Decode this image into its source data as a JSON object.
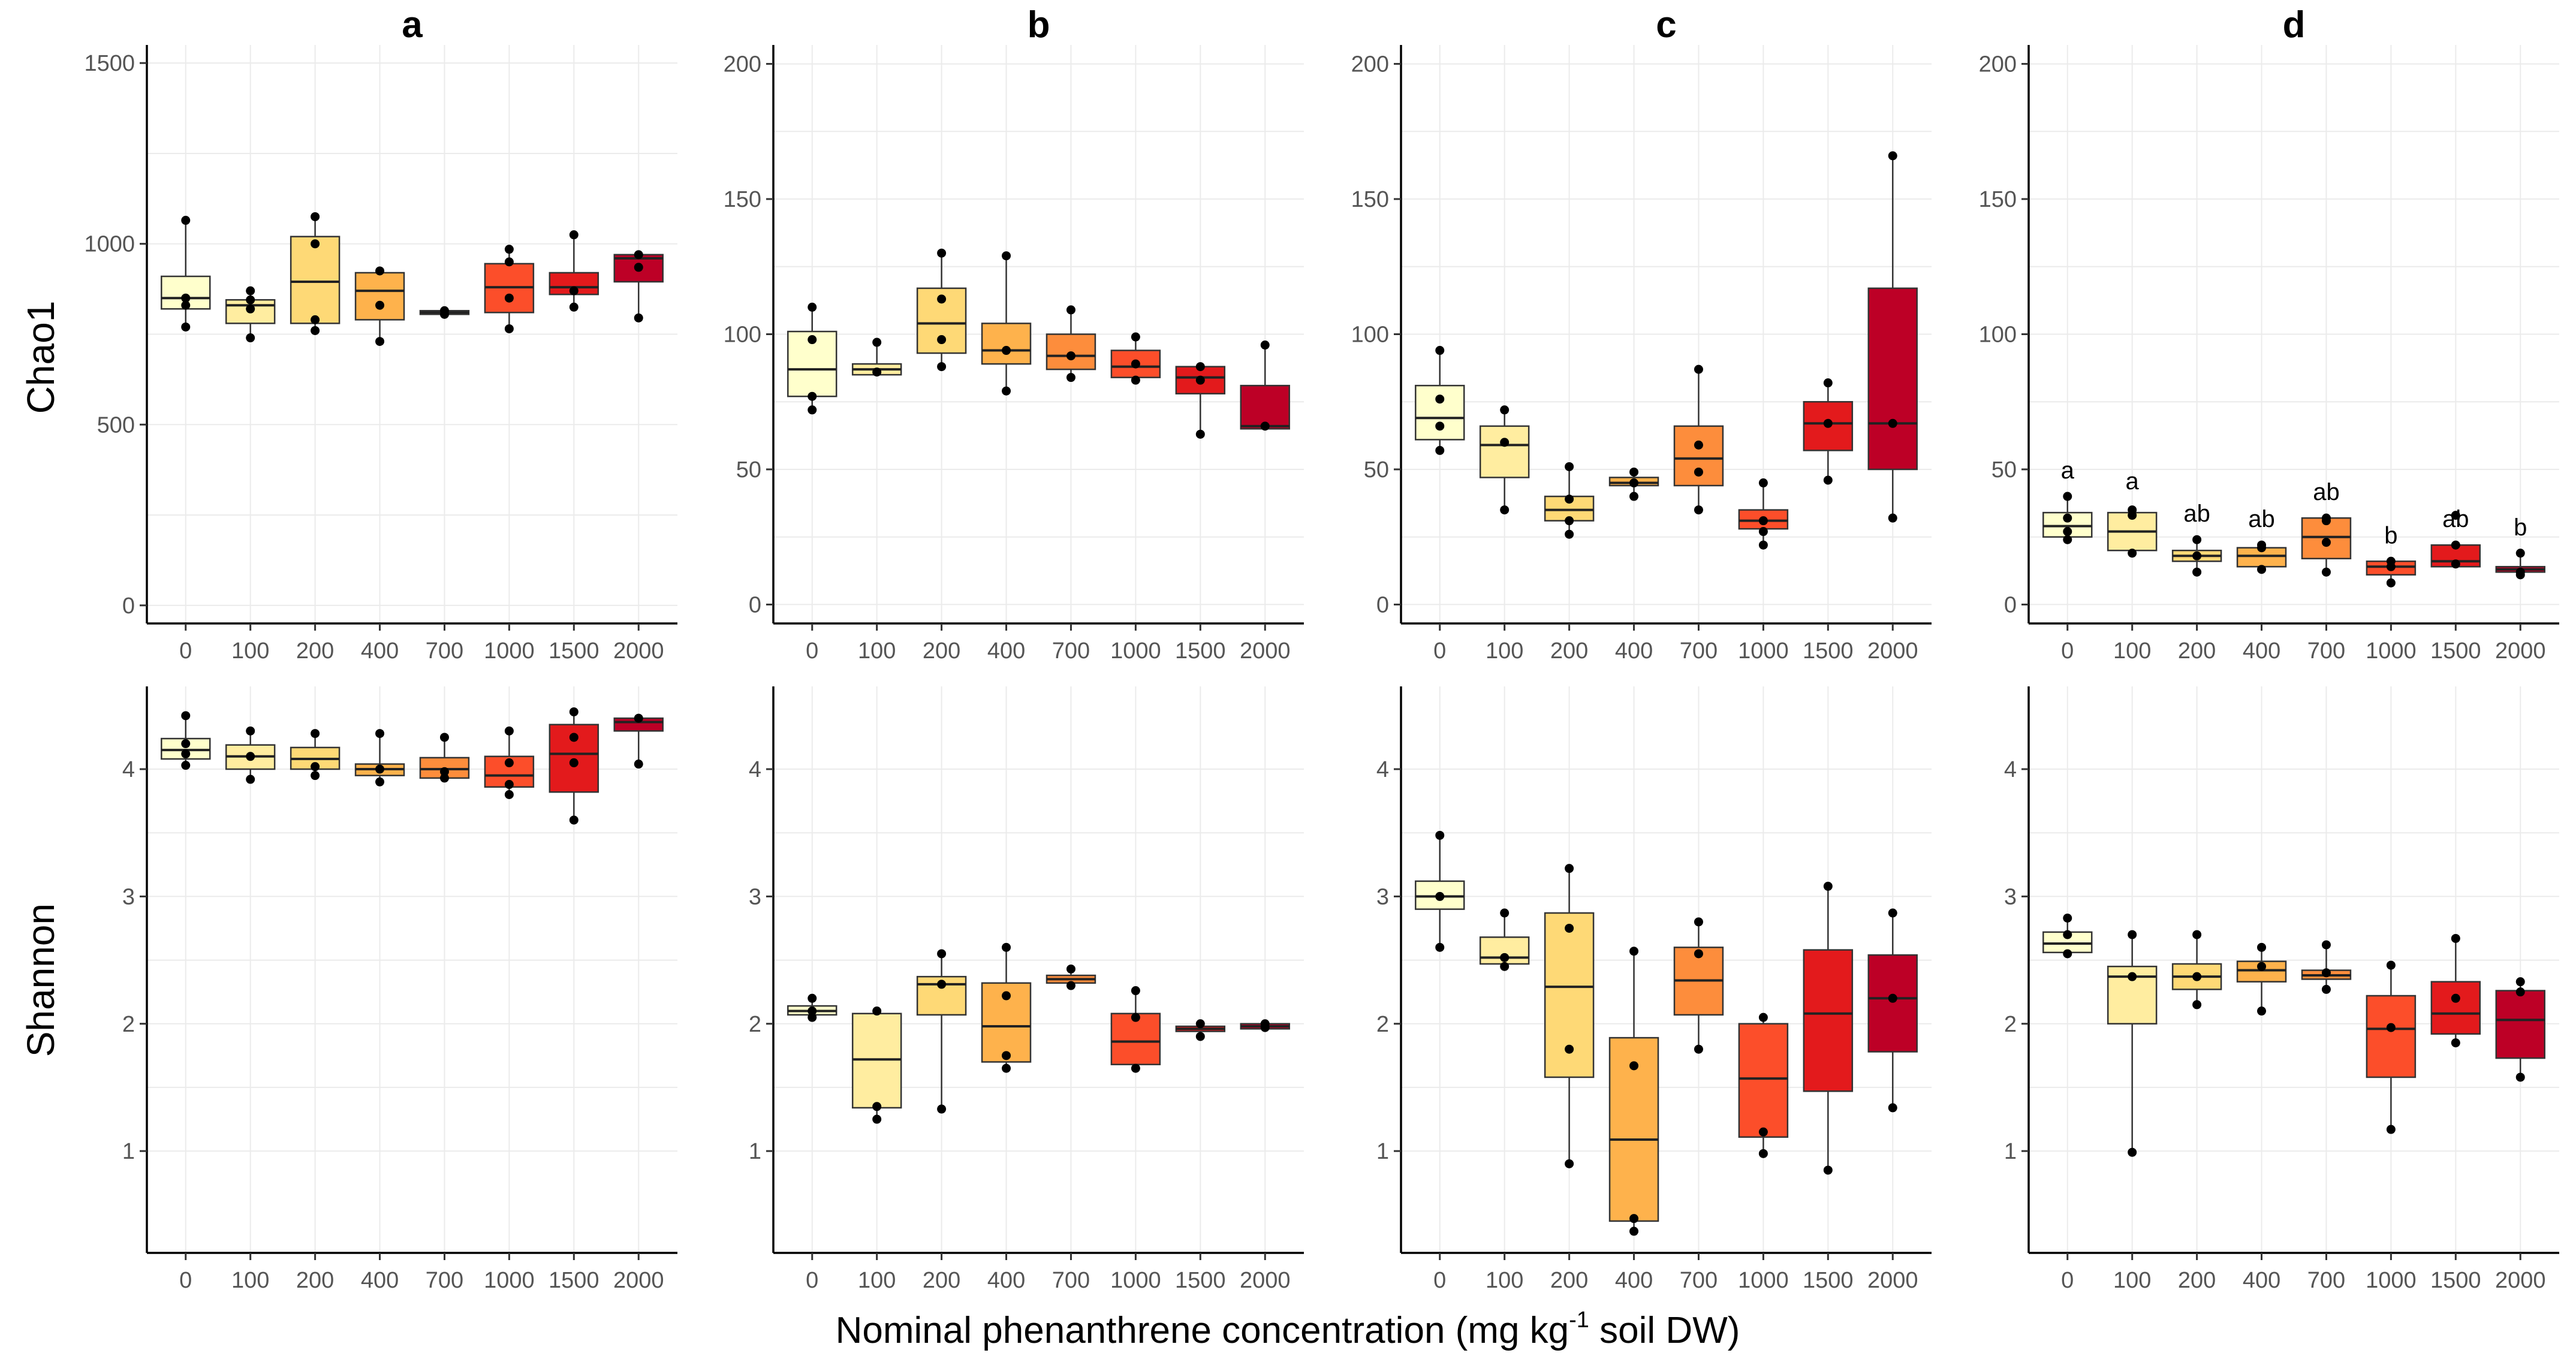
{
  "figure": {
    "xlabel_prefix": "Nominal phenanthrene concentration (mg kg",
    "xlabel_sup": "-1",
    "xlabel_suffix": " soil DW)",
    "row_labels": [
      "Chao1",
      "Shannon"
    ]
  },
  "colors": [
    "#FFFFCC",
    "#FFEDA0",
    "#FED976",
    "#FEB24C",
    "#FD8D3C",
    "#FC4E2A",
    "#E31A1C",
    "#BD0026"
  ],
  "chart_data": [
    {
      "panel": "a",
      "metric": "Chao1",
      "type": "box",
      "categories": [
        "0",
        "100",
        "200",
        "400",
        "700",
        "1000",
        "1500",
        "2000"
      ],
      "ylim": [
        -50,
        1550
      ],
      "yticks": [
        0,
        500,
        1000,
        1500
      ],
      "boxes": [
        {
          "q1": 820,
          "median": 850,
          "q3": 910,
          "lo": 770,
          "hi": 1065,
          "points": [
            770,
            830,
            850,
            1065
          ]
        },
        {
          "q1": 780,
          "median": 830,
          "q3": 845,
          "lo": 740,
          "hi": 870,
          "points": [
            740,
            820,
            845,
            870
          ]
        },
        {
          "q1": 780,
          "median": 895,
          "q3": 1020,
          "lo": 760,
          "hi": 1075,
          "points": [
            760,
            790,
            1000,
            1075
          ]
        },
        {
          "q1": 790,
          "median": 870,
          "q3": 920,
          "lo": 730,
          "hi": 925,
          "points": [
            730,
            830,
            925
          ]
        },
        {
          "q1": 805,
          "median": 810,
          "q3": 815,
          "lo": 805,
          "hi": 815,
          "points": [
            805,
            815
          ]
        },
        {
          "q1": 810,
          "median": 880,
          "q3": 945,
          "lo": 765,
          "hi": 985,
          "points": [
            765,
            850,
            950,
            985
          ]
        },
        {
          "q1": 860,
          "median": 880,
          "q3": 920,
          "lo": 825,
          "hi": 1025,
          "points": [
            825,
            870,
            1025
          ]
        },
        {
          "q1": 895,
          "median": 960,
          "q3": 970,
          "lo": 795,
          "hi": 975,
          "points": [
            795,
            935,
            970
          ]
        }
      ]
    },
    {
      "panel": "b",
      "metric": "Chao1",
      "type": "box",
      "categories": [
        "0",
        "100",
        "200",
        "400",
        "700",
        "1000",
        "1500",
        "2000"
      ],
      "ylim": [
        -7,
        207
      ],
      "yticks": [
        0,
        50,
        100,
        150,
        200
      ],
      "boxes": [
        {
          "q1": 77,
          "median": 87,
          "q3": 101,
          "lo": 72,
          "hi": 110,
          "points": [
            72,
            77,
            98,
            110
          ]
        },
        {
          "q1": 85,
          "median": 87,
          "q3": 89,
          "lo": 85,
          "hi": 97,
          "points": [
            86,
            97
          ]
        },
        {
          "q1": 93,
          "median": 104,
          "q3": 117,
          "lo": 88,
          "hi": 130,
          "points": [
            88,
            98,
            113,
            130
          ]
        },
        {
          "q1": 89,
          "median": 94,
          "q3": 104,
          "lo": 79,
          "hi": 129,
          "points": [
            79,
            94,
            129
          ]
        },
        {
          "q1": 87,
          "median": 92,
          "q3": 100,
          "lo": 84,
          "hi": 109,
          "points": [
            84,
            92,
            109
          ]
        },
        {
          "q1": 84,
          "median": 88,
          "q3": 94,
          "lo": 82,
          "hi": 99,
          "points": [
            83,
            89,
            99
          ]
        },
        {
          "q1": 78,
          "median": 84,
          "q3": 88,
          "lo": 63,
          "hi": 89,
          "points": [
            63,
            83,
            88
          ]
        },
        {
          "q1": 65,
          "median": 66,
          "q3": 81,
          "lo": 65,
          "hi": 96,
          "points": [
            66,
            96
          ]
        }
      ]
    },
    {
      "panel": "c",
      "metric": "Chao1",
      "type": "box",
      "categories": [
        "0",
        "100",
        "200",
        "400",
        "700",
        "1000",
        "1500",
        "2000"
      ],
      "ylim": [
        -7,
        207
      ],
      "yticks": [
        0,
        50,
        100,
        150,
        200
      ],
      "boxes": [
        {
          "q1": 61,
          "median": 69,
          "q3": 81,
          "lo": 57,
          "hi": 94,
          "points": [
            57,
            66,
            76,
            94
          ]
        },
        {
          "q1": 47,
          "median": 59,
          "q3": 66,
          "lo": 35,
          "hi": 72,
          "points": [
            35,
            60,
            72
          ]
        },
        {
          "q1": 31,
          "median": 35,
          "q3": 40,
          "lo": 26,
          "hi": 51,
          "points": [
            26,
            31,
            39,
            51
          ]
        },
        {
          "q1": 44,
          "median": 45,
          "q3": 47,
          "lo": 40,
          "hi": 49,
          "points": [
            40,
            45,
            49
          ]
        },
        {
          "q1": 44,
          "median": 54,
          "q3": 66,
          "lo": 35,
          "hi": 87,
          "points": [
            35,
            49,
            59,
            87
          ]
        },
        {
          "q1": 28,
          "median": 31,
          "q3": 35,
          "lo": 22,
          "hi": 45,
          "points": [
            22,
            27,
            31,
            45
          ]
        },
        {
          "q1": 57,
          "median": 67,
          "q3": 75,
          "lo": 46,
          "hi": 82,
          "points": [
            46,
            67,
            82
          ]
        },
        {
          "q1": 50,
          "median": 67,
          "q3": 117,
          "lo": 32,
          "hi": 166,
          "points": [
            32,
            67,
            166
          ]
        }
      ]
    },
    {
      "panel": "d",
      "metric": "Chao1",
      "type": "box",
      "categories": [
        "0",
        "100",
        "200",
        "400",
        "700",
        "1000",
        "1500",
        "2000"
      ],
      "ylim": [
        -7,
        207
      ],
      "yticks": [
        0,
        50,
        100,
        150,
        200
      ],
      "sig_letters": [
        "a",
        "a",
        "ab",
        "ab",
        "ab",
        "b",
        "ab",
        "b"
      ],
      "boxes": [
        {
          "q1": 25,
          "median": 29,
          "q3": 34,
          "lo": 24,
          "hi": 40,
          "points": [
            24,
            27,
            32,
            40
          ]
        },
        {
          "q1": 20,
          "median": 27,
          "q3": 34,
          "lo": 19,
          "hi": 36,
          "points": [
            19,
            33,
            35
          ]
        },
        {
          "q1": 16,
          "median": 18,
          "q3": 20,
          "lo": 12,
          "hi": 24,
          "points": [
            12,
            18,
            24
          ]
        },
        {
          "q1": 14,
          "median": 18,
          "q3": 21,
          "lo": 13,
          "hi": 22,
          "points": [
            13,
            21,
            22
          ]
        },
        {
          "q1": 17,
          "median": 25,
          "q3": 32,
          "lo": 12,
          "hi": 32,
          "points": [
            12,
            23,
            31,
            32
          ]
        },
        {
          "q1": 11,
          "median": 14,
          "q3": 16,
          "lo": 8,
          "hi": 16,
          "points": [
            8,
            14,
            16
          ]
        },
        {
          "q1": 14,
          "median": 16,
          "q3": 22,
          "lo": 14,
          "hi": 22,
          "points": [
            15,
            22,
            33
          ]
        },
        {
          "q1": 12,
          "median": 13,
          "q3": 14,
          "lo": 11,
          "hi": 19,
          "points": [
            11,
            12,
            19
          ]
        }
      ]
    },
    {
      "panel": "a",
      "metric": "Shannon",
      "type": "box",
      "categories": [
        "0",
        "100",
        "200",
        "400",
        "700",
        "1000",
        "1500",
        "2000"
      ],
      "ylim": [
        0.2,
        4.65
      ],
      "yticks": [
        1,
        2,
        3,
        4
      ],
      "boxes": [
        {
          "q1": 4.08,
          "median": 4.15,
          "q3": 4.24,
          "lo": 4.03,
          "hi": 4.42,
          "points": [
            4.03,
            4.12,
            4.2,
            4.42
          ]
        },
        {
          "q1": 4.0,
          "median": 4.1,
          "q3": 4.19,
          "lo": 3.92,
          "hi": 4.3,
          "points": [
            3.92,
            4.1,
            4.3
          ]
        },
        {
          "q1": 4.0,
          "median": 4.08,
          "q3": 4.17,
          "lo": 3.95,
          "hi": 4.28,
          "points": [
            3.95,
            4.02,
            4.28
          ]
        },
        {
          "q1": 3.95,
          "median": 4.0,
          "q3": 4.04,
          "lo": 3.9,
          "hi": 4.28,
          "points": [
            3.9,
            4.0,
            4.28
          ]
        },
        {
          "q1": 3.93,
          "median": 4.0,
          "q3": 4.09,
          "lo": 3.92,
          "hi": 4.25,
          "points": [
            3.93,
            3.98,
            4.25
          ]
        },
        {
          "q1": 3.86,
          "median": 3.95,
          "q3": 4.1,
          "lo": 3.8,
          "hi": 4.3,
          "points": [
            3.8,
            3.88,
            4.05,
            4.3
          ]
        },
        {
          "q1": 3.82,
          "median": 4.12,
          "q3": 4.35,
          "lo": 3.6,
          "hi": 4.45,
          "points": [
            3.6,
            4.05,
            4.25,
            4.45
          ]
        },
        {
          "q1": 4.3,
          "median": 4.37,
          "q3": 4.4,
          "lo": 4.04,
          "hi": 4.42,
          "points": [
            4.04,
            4.4
          ]
        }
      ]
    },
    {
      "panel": "b",
      "metric": "Shannon",
      "type": "box",
      "categories": [
        "0",
        "100",
        "200",
        "400",
        "700",
        "1000",
        "1500",
        "2000"
      ],
      "ylim": [
        0.2,
        4.65
      ],
      "yticks": [
        1,
        2,
        3,
        4
      ],
      "boxes": [
        {
          "q1": 2.07,
          "median": 2.1,
          "q3": 2.14,
          "lo": 2.03,
          "hi": 2.2,
          "points": [
            2.05,
            2.1,
            2.2
          ]
        },
        {
          "q1": 1.34,
          "median": 1.72,
          "q3": 2.08,
          "lo": 1.25,
          "hi": 2.1,
          "points": [
            1.25,
            1.35,
            2.1
          ]
        },
        {
          "q1": 2.07,
          "median": 2.31,
          "q3": 2.37,
          "lo": 1.33,
          "hi": 2.55,
          "points": [
            1.33,
            2.31,
            2.55
          ]
        },
        {
          "q1": 1.7,
          "median": 1.98,
          "q3": 2.32,
          "lo": 1.65,
          "hi": 2.6,
          "points": [
            1.65,
            1.75,
            2.22,
            2.6
          ]
        },
        {
          "q1": 2.32,
          "median": 2.35,
          "q3": 2.38,
          "lo": 2.3,
          "hi": 2.43,
          "points": [
            2.3,
            2.43
          ]
        },
        {
          "q1": 1.68,
          "median": 1.86,
          "q3": 2.08,
          "lo": 1.65,
          "hi": 2.26,
          "points": [
            1.65,
            2.05,
            2.26
          ]
        },
        {
          "q1": 1.94,
          "median": 1.96,
          "q3": 1.98,
          "lo": 1.9,
          "hi": 2.0,
          "points": [
            1.9,
            2.0
          ]
        },
        {
          "q1": 1.96,
          "median": 1.98,
          "q3": 2.0,
          "lo": 1.96,
          "hi": 2.01,
          "points": [
            1.97,
            2.0
          ]
        }
      ]
    },
    {
      "panel": "c",
      "metric": "Shannon",
      "type": "box",
      "categories": [
        "0",
        "100",
        "200",
        "400",
        "700",
        "1000",
        "1500",
        "2000"
      ],
      "ylim": [
        0.2,
        4.65
      ],
      "yticks": [
        1,
        2,
        3,
        4
      ],
      "boxes": [
        {
          "q1": 2.9,
          "median": 3.0,
          "q3": 3.12,
          "lo": 2.6,
          "hi": 3.48,
          "points": [
            2.6,
            3.0,
            3.48
          ]
        },
        {
          "q1": 2.47,
          "median": 2.52,
          "q3": 2.68,
          "lo": 2.43,
          "hi": 2.87,
          "points": [
            2.45,
            2.52,
            2.87
          ]
        },
        {
          "q1": 1.58,
          "median": 2.29,
          "q3": 2.87,
          "lo": 0.9,
          "hi": 3.22,
          "points": [
            0.9,
            1.8,
            2.75,
            3.22
          ]
        },
        {
          "q1": 0.45,
          "median": 1.09,
          "q3": 1.89,
          "lo": 0.37,
          "hi": 2.57,
          "points": [
            0.37,
            0.47,
            1.67,
            2.57
          ]
        },
        {
          "q1": 2.07,
          "median": 2.34,
          "q3": 2.6,
          "lo": 1.8,
          "hi": 2.8,
          "points": [
            1.8,
            2.55,
            2.8
          ]
        },
        {
          "q1": 1.11,
          "median": 1.57,
          "q3": 2.0,
          "lo": 0.98,
          "hi": 2.05,
          "points": [
            0.98,
            1.15,
            2.05
          ]
        },
        {
          "q1": 1.47,
          "median": 2.08,
          "q3": 2.58,
          "lo": 0.85,
          "hi": 3.08,
          "points": [
            0.85,
            3.08
          ]
        },
        {
          "q1": 1.78,
          "median": 2.2,
          "q3": 2.54,
          "lo": 1.34,
          "hi": 2.87,
          "points": [
            1.34,
            2.2,
            2.87
          ]
        }
      ]
    },
    {
      "panel": "d",
      "metric": "Shannon",
      "type": "box",
      "categories": [
        "0",
        "100",
        "200",
        "400",
        "700",
        "1000",
        "1500",
        "2000"
      ],
      "ylim": [
        0.2,
        4.65
      ],
      "yticks": [
        1,
        2,
        3,
        4
      ],
      "boxes": [
        {
          "q1": 2.56,
          "median": 2.63,
          "q3": 2.72,
          "lo": 2.52,
          "hi": 2.83,
          "points": [
            2.55,
            2.7,
            2.83
          ]
        },
        {
          "q1": 2.0,
          "median": 2.37,
          "q3": 2.45,
          "lo": 0.99,
          "hi": 2.7,
          "points": [
            0.99,
            2.37,
            2.7
          ]
        },
        {
          "q1": 2.27,
          "median": 2.37,
          "q3": 2.47,
          "lo": 2.15,
          "hi": 2.7,
          "points": [
            2.15,
            2.37,
            2.7
          ]
        },
        {
          "q1": 2.33,
          "median": 2.42,
          "q3": 2.49,
          "lo": 2.1,
          "hi": 2.6,
          "points": [
            2.1,
            2.45,
            2.6
          ]
        },
        {
          "q1": 2.35,
          "median": 2.38,
          "q3": 2.42,
          "lo": 2.27,
          "hi": 2.62,
          "points": [
            2.27,
            2.4,
            2.62
          ]
        },
        {
          "q1": 1.58,
          "median": 1.96,
          "q3": 2.22,
          "lo": 1.17,
          "hi": 2.46,
          "points": [
            1.17,
            1.97,
            2.46
          ]
        },
        {
          "q1": 1.92,
          "median": 2.08,
          "q3": 2.33,
          "lo": 1.85,
          "hi": 2.67,
          "points": [
            1.85,
            2.2,
            2.67
          ]
        },
        {
          "q1": 1.73,
          "median": 2.03,
          "q3": 2.26,
          "lo": 1.58,
          "hi": 2.33,
          "points": [
            1.58,
            2.25,
            2.33
          ]
        }
      ]
    }
  ]
}
